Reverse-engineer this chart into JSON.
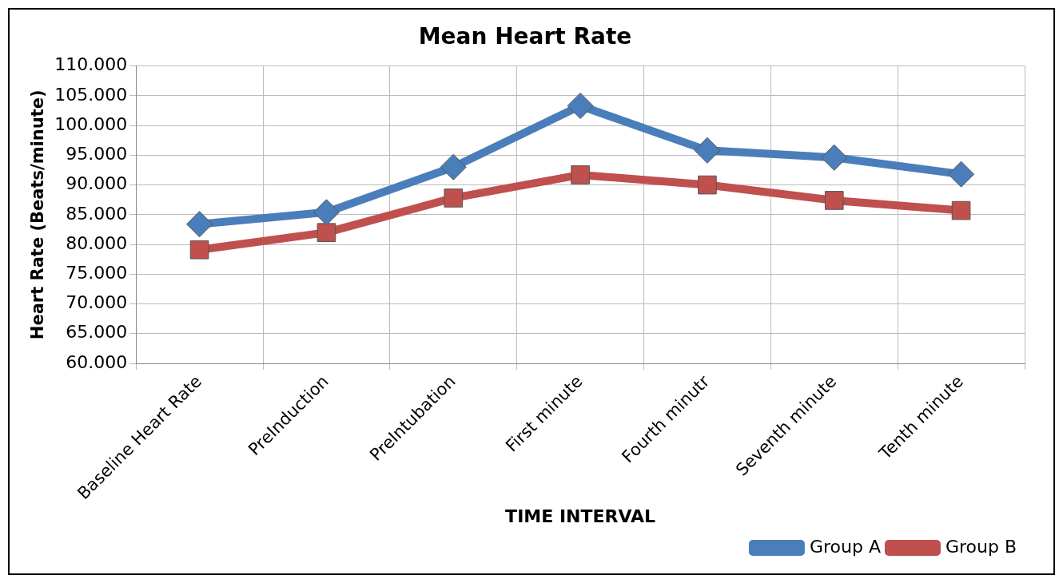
{
  "chart_data": {
    "type": "line",
    "title": "Mean Heart Rate",
    "xlabel": "TIME INTERVAL",
    "ylabel": "Heart Rate (Beats/minute)",
    "categories": [
      "Baseline Heart Rate",
      "PreInduction",
      "PreIntubation",
      "First minute",
      "Fourth minutr",
      "Seventh minute",
      "Tenth minute"
    ],
    "series": [
      {
        "name": "Group A",
        "color": "#4a7ebb",
        "marker": "diamond",
        "values": [
          83.4,
          85.4,
          93,
          103.3,
          95.8,
          94.6,
          91.8
        ]
      },
      {
        "name": "Group B",
        "color": "#c0504d",
        "marker": "square",
        "values": [
          79.1,
          82,
          87.8,
          91.7,
          90,
          87.4,
          85.7
        ]
      }
    ],
    "ylim": [
      60,
      110
    ],
    "yticks": [
      {
        "value": 60,
        "label": "60.000"
      },
      {
        "value": 65,
        "label": "65.000"
      },
      {
        "value": 70,
        "label": "70.000"
      },
      {
        "value": 75,
        "label": "75.000"
      },
      {
        "value": 80,
        "label": "80.000"
      },
      {
        "value": 85,
        "label": "85.000"
      },
      {
        "value": 90,
        "label": "90.000"
      },
      {
        "value": 95,
        "label": "95.000"
      },
      {
        "value": 100,
        "label": "100.000"
      },
      {
        "value": 105,
        "label": "105.000"
      },
      {
        "value": 110,
        "label": "110.000"
      }
    ],
    "grid": true,
    "legend": "bottom right",
    "line_style": "solid"
  }
}
